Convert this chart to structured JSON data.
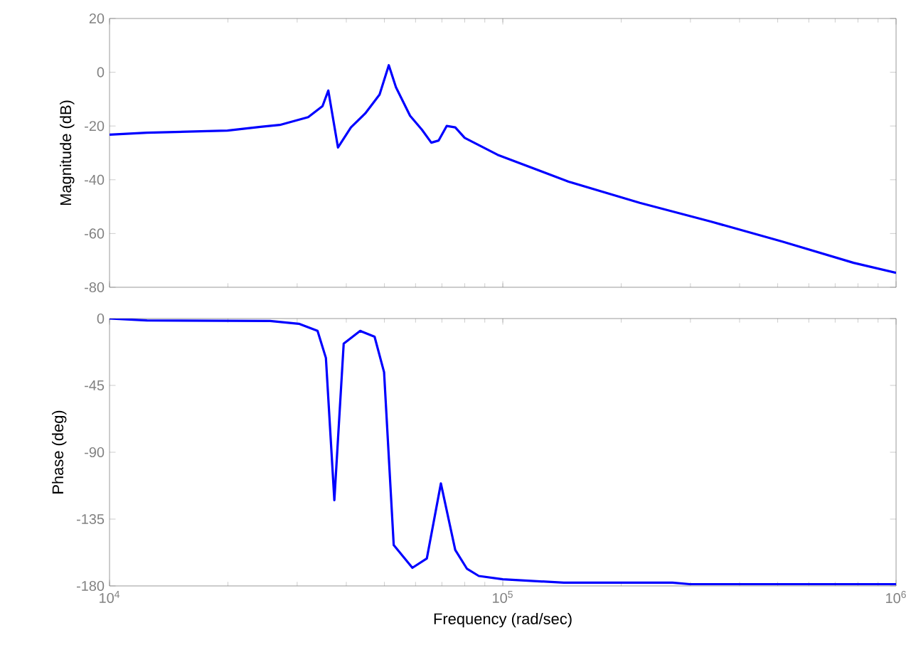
{
  "chart_data": [
    {
      "type": "line",
      "ylabel": "Magnitude (dB)",
      "log": "x",
      "tick_labels": "y",
      "xlim": [
        10000,
        1000000
      ],
      "ylim": [
        -80,
        20
      ],
      "yticks": [
        -80,
        -60,
        -40,
        -20,
        0,
        20
      ],
      "xticks": [
        {
          "value": 10000,
          "label": null
        },
        {
          "value": 100000,
          "label": null
        },
        {
          "value": 1000000,
          "label": null
        }
      ],
      "series": [
        {
          "color": "#0000ff",
          "x": [
            10000,
            12450,
            19950,
            24200,
            27100,
            32000,
            34800,
            36000,
            38100,
            41100,
            44700,
            48600,
            51300,
            53500,
            58100,
            62300,
            65800,
            68700,
            72000,
            75700,
            80000,
            97000,
            147000,
            223000,
            339000,
            514000,
            780000,
            1000000
          ],
          "values": [
            -23.2,
            -22.5,
            -21.7,
            -20.3,
            -19.6,
            -16.7,
            -12.6,
            -6.8,
            -28.0,
            -20.5,
            -15.3,
            -8.3,
            2.6,
            -5.6,
            -16.2,
            -21.4,
            -26.2,
            -25.4,
            -20.0,
            -20.5,
            -24.4,
            -30.7,
            -40.7,
            -48.6,
            -55.6,
            -63.0,
            -70.9,
            -74.6
          ]
        }
      ]
    },
    {
      "type": "line",
      "xlabel": "Frequency (rad/sec)",
      "ylabel": "Phase (deg)",
      "log": "x",
      "xlim": [
        10000,
        1000000
      ],
      "ylim": [
        -180,
        0
      ],
      "yticks": [
        -180,
        -135,
        -90,
        -45,
        0
      ],
      "xticks": [
        {
          "value": 10000,
          "label": "10$^{4}$"
        },
        {
          "value": 100000,
          "label": "10$^{5}$"
        },
        {
          "value": 1000000,
          "label": "10$^{6}$"
        }
      ],
      "series": [
        {
          "color": "#0000ff",
          "x": [
            10000,
            12450,
            25600,
            30300,
            33800,
            35500,
            37300,
            39400,
            43400,
            47200,
            49900,
            52800,
            58900,
            64100,
            69600,
            75700,
            81100,
            86900,
            100000,
            143000,
            270000,
            299000,
            1000000
          ],
          "values": [
            0,
            -1.3,
            -1.6,
            -3.5,
            -8.3,
            -26.5,
            -122.3,
            -16.9,
            -8.3,
            -12.2,
            -36.1,
            -152.5,
            -167.8,
            -161.5,
            -111,
            -155.8,
            -168.5,
            -173.3,
            -175.5,
            -177.8,
            -177.8,
            -178.8,
            -178.8
          ]
        }
      ]
    }
  ]
}
